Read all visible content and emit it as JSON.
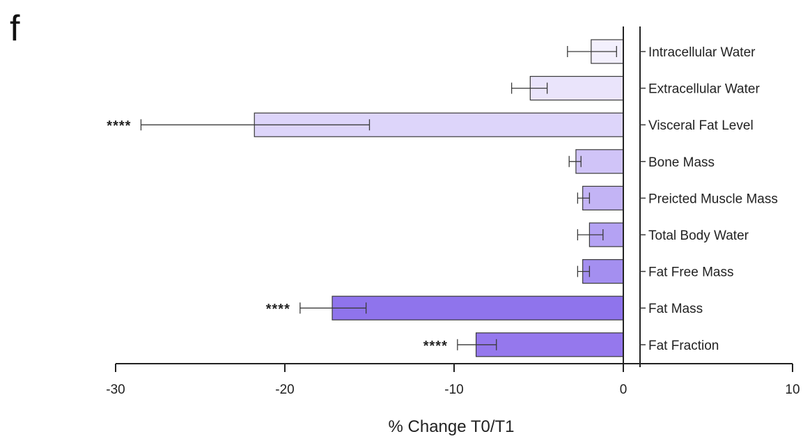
{
  "panel_label": "f",
  "chart_data": {
    "type": "bar",
    "orientation": "horizontal",
    "xlabel": "% Change T0/T1",
    "xlim": [
      -30,
      10
    ],
    "xticks": [
      -30,
      -20,
      -10,
      0,
      10
    ],
    "xtick_labels": [
      "-30",
      "-20",
      "-10",
      "0",
      "10"
    ],
    "grid": false,
    "categories": [
      "Intracellular Water",
      "Extracellular Water",
      "Visceral Fat Level",
      "Bone Mass",
      "Preicted Muscle Mass",
      "Total Body Water",
      "Fat Free Mass",
      "Fat Mass",
      "Fat Fraction"
    ],
    "values": [
      -1.9,
      -5.5,
      -21.8,
      -2.8,
      -2.4,
      -2.0,
      -2.4,
      -17.2,
      -8.7
    ],
    "error_low": [
      -3.3,
      -6.6,
      -28.5,
      -3.2,
      -2.7,
      -2.7,
      -2.7,
      -19.1,
      -9.8
    ],
    "error_high": [
      -0.4,
      -4.5,
      -15.0,
      -2.5,
      -2.0,
      -1.2,
      -2.0,
      -15.2,
      -7.5
    ],
    "significance": [
      "",
      "",
      "****",
      "",
      "",
      "",
      "",
      "****",
      "****"
    ],
    "colors": [
      "#f3f0fd",
      "#eae4fb",
      "#ddd5fa",
      "#d0c4f8",
      "#c3b4f5",
      "#b4a2f3",
      "#a48ff0",
      "#8f74ec",
      "#9578ed"
    ],
    "stroke_color": "#3a3a3a"
  }
}
